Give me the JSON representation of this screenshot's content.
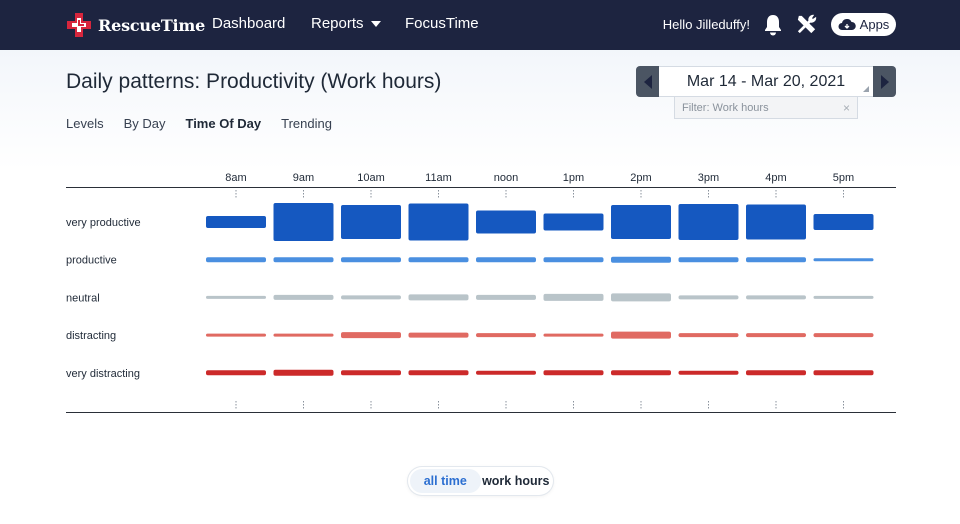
{
  "nav": {
    "brand": "RescueTime",
    "links": [
      "Dashboard",
      "Reports",
      "FocusTime"
    ],
    "greeting": "Hello Jilleduffy!",
    "apps_label": "Apps"
  },
  "header": {
    "title": "Daily patterns: Productivity (Work hours)",
    "date_range": "Mar 14 - Mar 20, 2021",
    "filter": "Filter: Work hours",
    "filter_close": "×"
  },
  "subtabs": [
    {
      "label": "Levels",
      "active": false
    },
    {
      "label": "By Day",
      "active": false
    },
    {
      "label": "Time Of Day",
      "active": true
    },
    {
      "label": "Trending",
      "active": false
    }
  ],
  "chart_data": {
    "type": "heatmap",
    "categories": [
      "8am",
      "9am",
      "10am",
      "11am",
      "noon",
      "1pm",
      "2pm",
      "3pm",
      "4pm",
      "5pm"
    ],
    "series": [
      {
        "name": "very productive",
        "color": "#1558c0",
        "values": [
          12,
          38,
          34,
          37,
          23,
          17,
          34,
          36,
          35,
          16
        ]
      },
      {
        "name": "productive",
        "color": "#4a8fe0",
        "values": [
          5,
          5,
          5,
          5,
          5,
          5,
          6,
          5,
          5,
          3
        ]
      },
      {
        "name": "neutral",
        "color": "#b9c4c9",
        "values": [
          3,
          5,
          4,
          6,
          5,
          7,
          8,
          4,
          4,
          3
        ]
      },
      {
        "name": "distracting",
        "color": "#e06a62",
        "values": [
          3,
          3,
          6,
          5,
          4,
          3,
          7,
          4,
          4,
          4
        ]
      },
      {
        "name": "very distracting",
        "color": "#cc2a2a",
        "values": [
          5,
          6,
          5,
          5,
          4,
          5,
          5,
          4,
          5,
          5
        ]
      }
    ]
  },
  "toggle": {
    "all_time": "all time",
    "work_hours": "work hours"
  }
}
